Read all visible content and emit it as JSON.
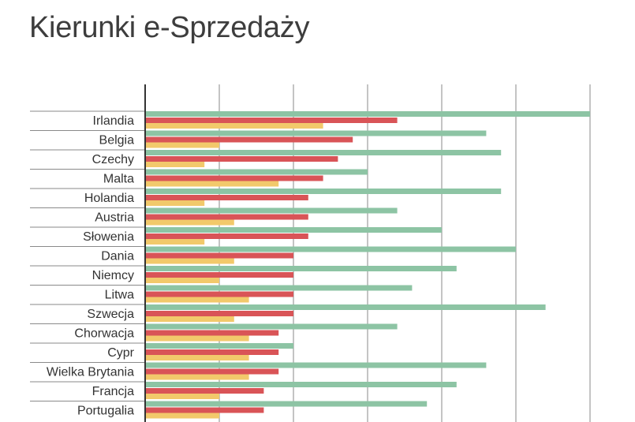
{
  "title": "Kierunki e-Sprzedaży",
  "colors": {
    "series_green": "#8dc4a4",
    "series_red": "#d95457",
    "series_yellow": "#f2c96b",
    "grid": "#8a8a8a",
    "axis": "#333333",
    "separator": "#8a8a8a"
  },
  "chart_data": {
    "type": "bar",
    "orientation": "horizontal",
    "title": "Kierunki e-Sprzedaży",
    "xlabel": "",
    "ylabel": "",
    "xlim": [
      0,
      6
    ],
    "grid": true,
    "x_tick_labels_shown": false,
    "legend": "none",
    "categories": [
      "Irlandia",
      "Belgia",
      "Czechy",
      "Malta",
      "Holandia",
      "Austria",
      "Słowenia",
      "Dania",
      "Niemcy",
      "Litwa",
      "Szwecja",
      "Chorwacja",
      "Cypr",
      "Wielka Brytania",
      "Francja",
      "Portugalia"
    ],
    "series": [
      {
        "values": [
          6.0,
          4.6,
          4.8,
          3.0,
          4.8,
          3.4,
          4.0,
          5.0,
          4.2,
          3.6,
          5.4,
          3.4,
          2.0,
          4.6,
          4.2,
          3.8
        ]
      },
      {
        "values": [
          3.4,
          2.8,
          2.6,
          2.4,
          2.2,
          2.2,
          2.2,
          2.0,
          2.0,
          2.0,
          2.0,
          1.8,
          1.8,
          1.8,
          1.6,
          1.6
        ]
      },
      {
        "values": [
          2.4,
          1.0,
          0.8,
          1.8,
          0.8,
          1.2,
          0.8,
          1.2,
          1.0,
          1.4,
          1.2,
          1.4,
          1.4,
          1.4,
          1.0,
          1.0
        ]
      }
    ]
  }
}
